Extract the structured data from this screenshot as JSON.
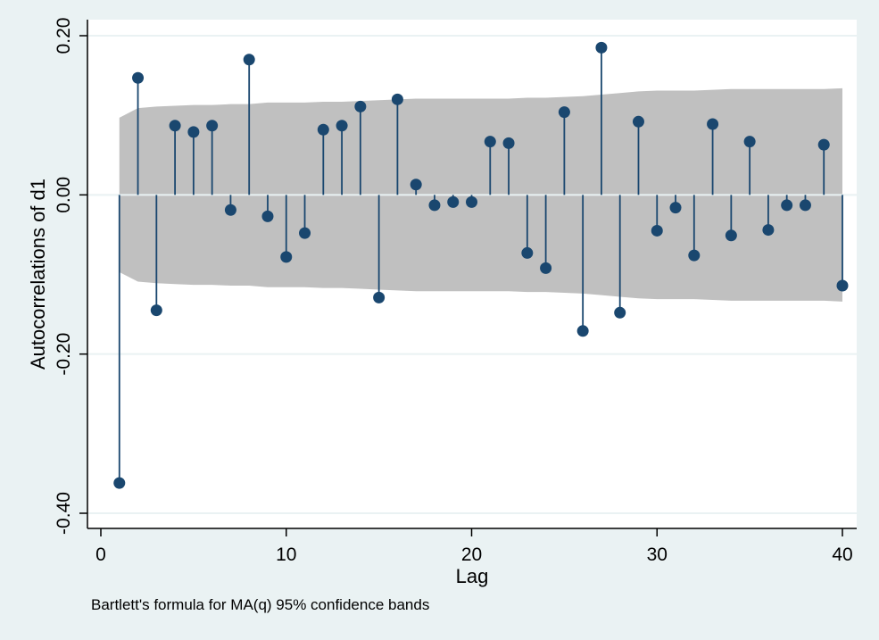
{
  "chart_data": {
    "type": "bar",
    "subtype": "autocorrelation stem plot",
    "title": "",
    "xlabel": "Lag",
    "ylabel": "Autocorrelations of d1",
    "note": "Bartlett's formula for MA(q) 95% confidence bands",
    "xlim": [
      0,
      40
    ],
    "ylim": [
      -0.4,
      0.2
    ],
    "x_ticks": [
      0,
      10,
      20,
      30,
      40
    ],
    "x_tick_labels": [
      "0",
      "10",
      "20",
      "30",
      "40"
    ],
    "y_ticks": [
      -0.4,
      -0.2,
      0,
      0.2
    ],
    "y_tick_labels": [
      "-0.40",
      "-0.20",
      "0.00",
      "0.20"
    ],
    "grid": "horizontal",
    "lags": [
      1,
      2,
      3,
      4,
      5,
      6,
      7,
      8,
      9,
      10,
      11,
      12,
      13,
      14,
      15,
      16,
      17,
      18,
      19,
      20,
      21,
      22,
      23,
      24,
      25,
      26,
      27,
      28,
      29,
      30,
      31,
      32,
      33,
      34,
      35,
      36,
      37,
      38,
      39,
      40
    ],
    "values": [
      -0.362,
      0.147,
      -0.145,
      0.087,
      0.079,
      0.087,
      -0.019,
      0.17,
      -0.027,
      -0.078,
      -0.048,
      0.082,
      0.087,
      0.111,
      -0.129,
      0.12,
      0.013,
      -0.013,
      -0.009,
      -0.009,
      0.067,
      0.065,
      -0.073,
      -0.092,
      0.104,
      -0.171,
      0.185,
      -0.148,
      0.092,
      -0.045,
      -0.016,
      -0.076,
      0.089,
      -0.051,
      0.067,
      -0.044,
      -0.013,
      -0.013,
      0.063,
      -0.114
    ],
    "confidence_band": [
      0.097,
      0.109,
      0.111,
      0.112,
      0.113,
      0.113,
      0.114,
      0.114,
      0.116,
      0.116,
      0.116,
      0.117,
      0.117,
      0.118,
      0.119,
      0.12,
      0.121,
      0.121,
      0.121,
      0.121,
      0.121,
      0.121,
      0.122,
      0.122,
      0.123,
      0.124,
      0.126,
      0.128,
      0.13,
      0.131,
      0.131,
      0.131,
      0.132,
      0.133,
      0.133,
      0.133,
      0.133,
      0.133,
      0.133,
      0.134
    ],
    "colors": {
      "background": "#eaf2f3",
      "plot_area": "#ffffff",
      "band": "#c0c0c0",
      "marker": "#1a476f",
      "grid": "#eaf2f3"
    }
  }
}
